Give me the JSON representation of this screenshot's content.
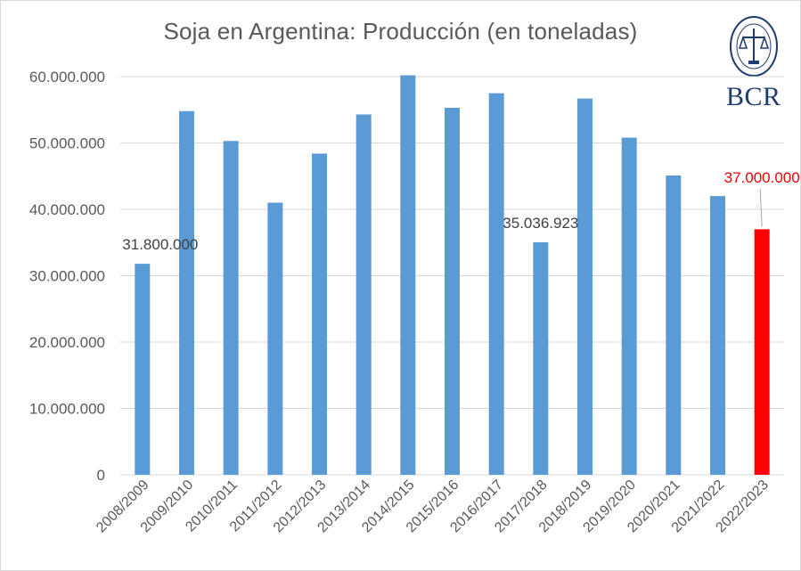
{
  "chart_data": {
    "type": "bar",
    "title": "Soja en Argentina: Producción (en toneladas)",
    "categories": [
      "2008/2009",
      "2009/2010",
      "2010/2011",
      "2011/2012",
      "2012/2013",
      "2013/2014",
      "2014/2015",
      "2015/2016",
      "2016/2017",
      "2017/2018",
      "2018/2019",
      "2019/2020",
      "2020/2021",
      "2021/2022",
      "2022/2023"
    ],
    "values": [
      31800000,
      54800000,
      50300000,
      41000000,
      48400000,
      54300000,
      60200000,
      55300000,
      57500000,
      35036923,
      56700000,
      50800000,
      45100000,
      42000000,
      37000000
    ],
    "ylim": [
      0,
      60000000
    ],
    "yticks": [
      "0",
      "10.000.000",
      "20.000.000",
      "30.000.000",
      "40.000.000",
      "50.000.000",
      "60.000.000"
    ],
    "ytick_values": [
      0,
      10000000,
      20000000,
      30000000,
      40000000,
      50000000,
      60000000
    ],
    "grid": true,
    "colors": {
      "default": "#5b9bd5",
      "highlight": "#ff0000",
      "label_highlight": "#ff0000",
      "label_default": "#404040"
    },
    "highlight_index": 14,
    "data_labels": [
      {
        "index": 0,
        "text": "31.800.000"
      },
      {
        "index": 9,
        "text": "35.036.923"
      },
      {
        "index": 14,
        "text": "37.000.000"
      }
    ]
  },
  "logo": {
    "text": "BCR",
    "color": "#1f3a70"
  }
}
